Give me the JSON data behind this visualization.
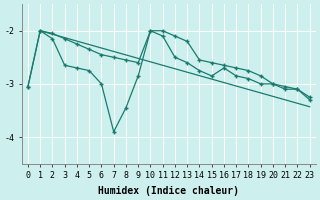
{
  "xlabel": "Humidex (Indice chaleur)",
  "bg_color": "#cdf0ee",
  "line_color": "#1a7a6e",
  "grid_color": "#ffffff",
  "xlim": [
    -0.5,
    23.5
  ],
  "ylim": [
    -4.5,
    -1.5
  ],
  "yticks": [
    -4,
    -3,
    -2
  ],
  "xticks": [
    0,
    1,
    2,
    3,
    4,
    5,
    6,
    7,
    8,
    9,
    10,
    11,
    12,
    13,
    14,
    15,
    16,
    17,
    18,
    19,
    20,
    21,
    22,
    23
  ],
  "line1_x": [
    0,
    1,
    2,
    3,
    4,
    5,
    6,
    7,
    8,
    9,
    10,
    11,
    12,
    13,
    14,
    15,
    16,
    17,
    18,
    19,
    20,
    21,
    22,
    23
  ],
  "line1_y": [
    -3.05,
    -2.0,
    -2.05,
    -2.15,
    -2.25,
    -2.35,
    -2.45,
    -2.5,
    -2.55,
    -2.6,
    -2.0,
    -2.0,
    -2.1,
    -2.2,
    -2.55,
    -2.6,
    -2.65,
    -2.7,
    -2.75,
    -2.85,
    -3.0,
    -3.05,
    -3.1,
    -3.25
  ],
  "line2_x": [
    0,
    1,
    2,
    3,
    4,
    5,
    6,
    7,
    8,
    9,
    10,
    11,
    12,
    13,
    14,
    15,
    16,
    17,
    18,
    19,
    20,
    21,
    22,
    23
  ],
  "line2_y": [
    -3.05,
    -2.0,
    -2.15,
    -2.65,
    -2.7,
    -2.75,
    -3.0,
    -3.9,
    -3.45,
    -2.85,
    -2.0,
    -2.1,
    -2.5,
    -2.6,
    -2.75,
    -2.85,
    -2.7,
    -2.85,
    -2.9,
    -3.0,
    -3.0,
    -3.1,
    -3.1,
    -3.3
  ],
  "line3_x": [
    1,
    23
  ],
  "line3_y": [
    -2.0,
    -3.43
  ]
}
